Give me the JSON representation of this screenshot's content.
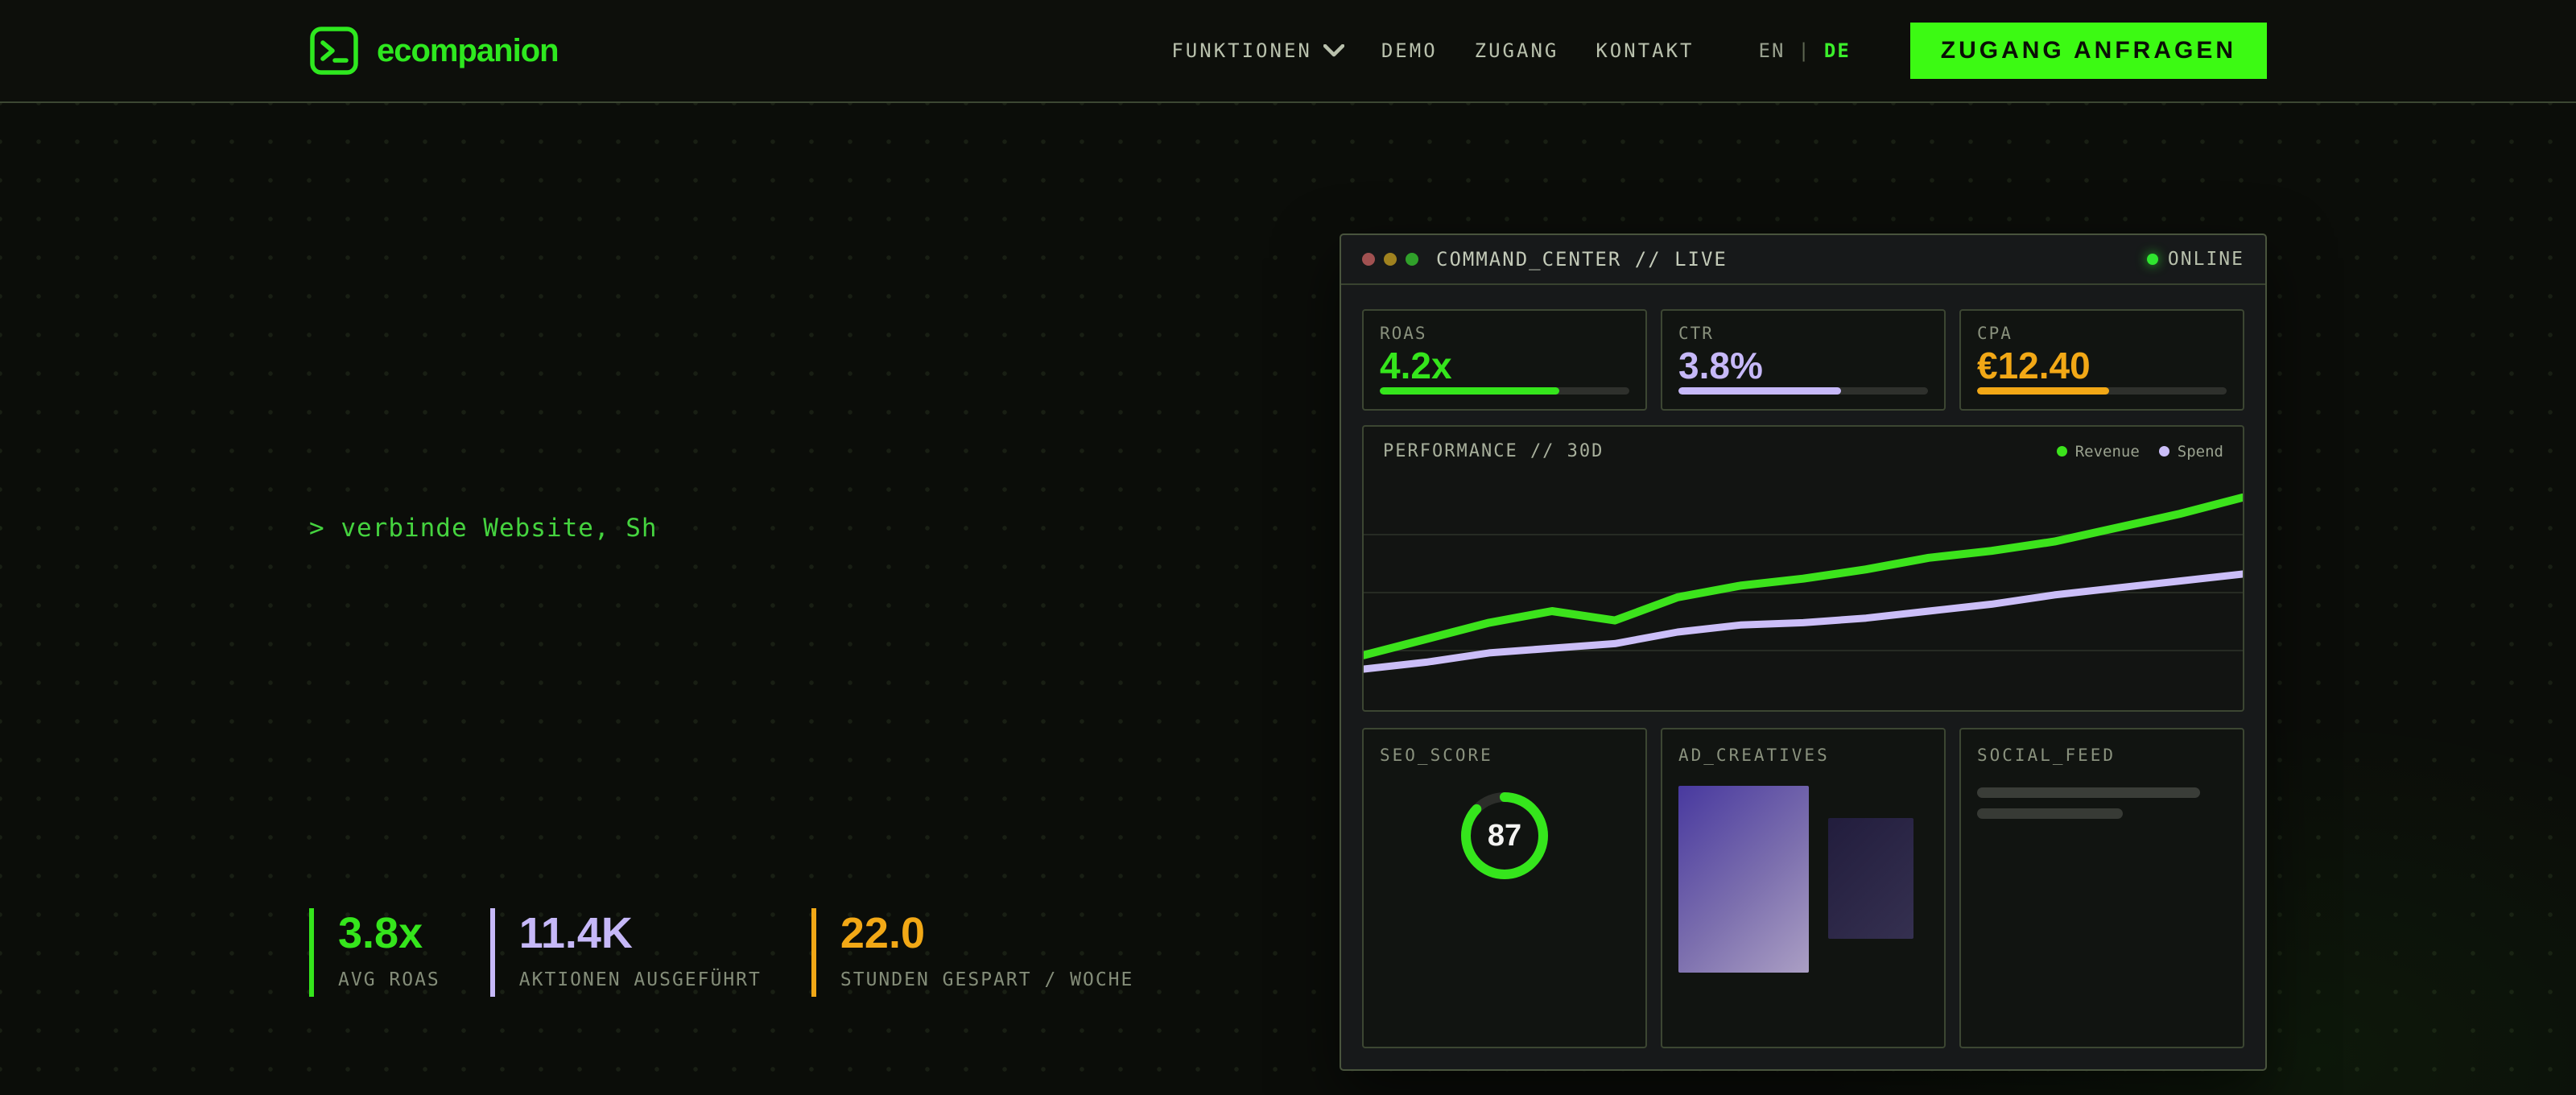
{
  "brand": {
    "name": "ecompanion",
    "accent": "#3cfa13"
  },
  "nav": {
    "items": [
      "FUNKTIONEN",
      "DEMO",
      "ZUGANG",
      "KONTAKT"
    ],
    "lang": {
      "en": "EN",
      "divider": "|",
      "de": "DE",
      "active": "DE"
    },
    "cta_label": "ZUGANG ANFRAGEN"
  },
  "hero": {
    "typing_text": "> verbinde Website, Sh"
  },
  "stats": [
    {
      "value": "3.8x",
      "label": "AVG ROAS",
      "color": "#35e51c"
    },
    {
      "value": "11.4K",
      "label": "AKTIONEN AUSGEFÜHRT",
      "color": "#c6b8f8"
    },
    {
      "value": "22.0",
      "label": "STUNDEN GESPART / WOCHE",
      "color": "#f2a816"
    }
  ],
  "dashboard": {
    "title": "COMMAND_CENTER // LIVE",
    "status": "ONLINE",
    "status_color": "#2fe62f",
    "metrics": [
      {
        "label": "ROAS",
        "value": "4.2x",
        "pct": 72,
        "color": "#35e51c"
      },
      {
        "label": "CTR",
        "value": "3.8%",
        "pct": 65,
        "color": "#c6b8f8"
      },
      {
        "label": "CPA",
        "value": "€12.40",
        "pct": 53,
        "color": "#f2a816"
      }
    ],
    "seo": {
      "label": "SEO_SCORE",
      "score": 87,
      "ring_color": "#35e51c",
      "track_color": "#2c2e2a"
    },
    "creatives": {
      "label": "AD_CREATIVES"
    },
    "social": {
      "label": "SOCIAL_FEED"
    }
  },
  "chart_data": {
    "type": "line",
    "title": "PERFORMANCE // 30D",
    "xlabel": "",
    "ylabel": "",
    "x_ticks_visible": false,
    "y_ticks_visible": false,
    "grid": "horizontal",
    "gridlines_pct": [
      25,
      50,
      75
    ],
    "legend_position": "top-right",
    "ylim": [
      0,
      100
    ],
    "x": [
      1,
      2,
      3,
      4,
      5,
      6,
      7,
      8,
      9,
      10,
      11,
      12,
      13,
      14,
      15
    ],
    "series": [
      {
        "name": "Revenue",
        "color": "#3ce31c",
        "values": [
          23,
          30,
          37,
          42,
          38,
          48,
          53,
          56,
          60,
          65,
          68,
          72,
          78,
          84,
          91
        ]
      },
      {
        "name": "Spend",
        "color": "#cbbef8",
        "values": [
          17,
          20,
          24,
          26,
          28,
          33,
          36,
          37,
          39,
          42,
          45,
          49,
          52,
          55,
          58
        ]
      }
    ]
  }
}
